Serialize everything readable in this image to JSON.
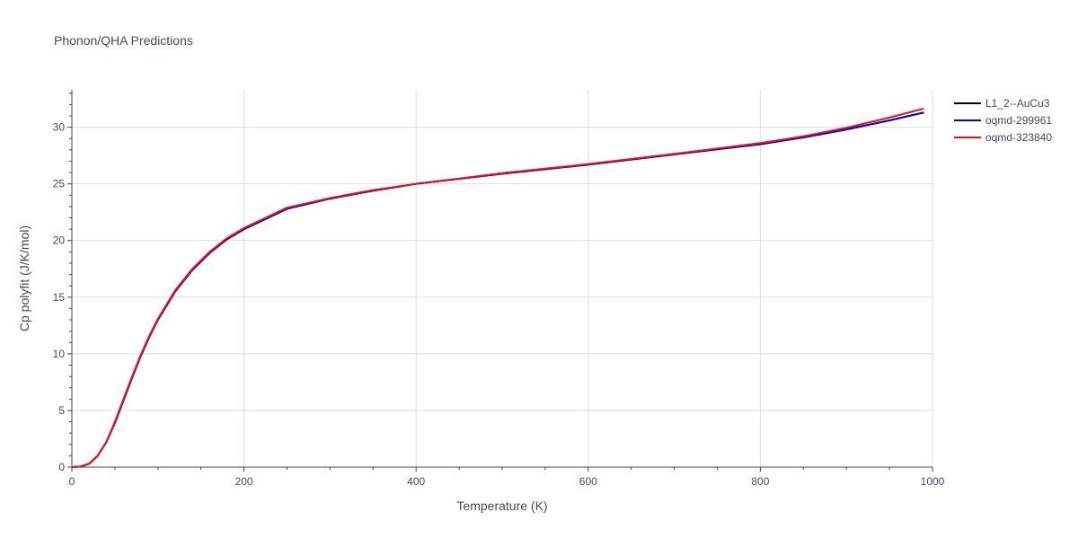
{
  "chart_data": {
    "type": "line",
    "title": "Phonon/QHA Predictions",
    "xlabel": "Temperature (K)",
    "ylabel": "Cp polyfit (J/K/mol)",
    "xlim": [
      0,
      1000
    ],
    "ylim": [
      0,
      33.3
    ],
    "xticks": [
      0,
      200,
      400,
      600,
      800,
      1000
    ],
    "yticks": [
      0,
      5,
      10,
      15,
      20,
      25,
      30
    ],
    "grid": true,
    "legend_position": "top-right",
    "series": [
      {
        "name": "L1_2--AuCu3",
        "color": "#000000",
        "x": [
          0,
          10,
          20,
          30,
          40,
          50,
          60,
          70,
          80,
          90,
          100,
          120,
          140,
          160,
          180,
          200,
          250,
          300,
          350,
          400,
          500,
          600,
          700,
          800,
          850,
          900,
          950,
          990
        ],
        "y": [
          0,
          0.05,
          0.3,
          1.0,
          2.2,
          3.9,
          5.9,
          7.9,
          9.8,
          11.5,
          13.0,
          15.5,
          17.4,
          18.9,
          20.1,
          21.0,
          22.8,
          23.7,
          24.4,
          25.0,
          25.9,
          26.7,
          27.6,
          28.5,
          29.1,
          29.8,
          30.6,
          31.3
        ]
      },
      {
        "name": "oqmd-299961",
        "color": "#0000dd",
        "x": [
          0,
          10,
          20,
          30,
          40,
          50,
          60,
          70,
          80,
          90,
          100,
          120,
          140,
          160,
          180,
          200,
          250,
          300,
          350,
          400,
          500,
          600,
          700,
          800,
          850,
          900,
          950,
          990
        ],
        "y": [
          0,
          0.05,
          0.3,
          1.0,
          2.2,
          3.9,
          5.9,
          7.9,
          9.8,
          11.5,
          13.0,
          15.5,
          17.4,
          18.9,
          20.1,
          21.0,
          22.8,
          23.7,
          24.4,
          25.0,
          25.9,
          26.7,
          27.6,
          28.5,
          29.1,
          29.8,
          30.6,
          31.3
        ]
      },
      {
        "name": "oqmd-323840",
        "color": "#ee1111",
        "x": [
          0,
          10,
          20,
          30,
          40,
          50,
          60,
          70,
          80,
          90,
          100,
          120,
          140,
          160,
          180,
          200,
          250,
          300,
          350,
          400,
          500,
          600,
          700,
          800,
          850,
          900,
          950,
          990
        ],
        "y": [
          0,
          0.05,
          0.3,
          1.0,
          2.2,
          4.0,
          6.0,
          8.0,
          9.9,
          11.6,
          13.1,
          15.6,
          17.5,
          19.0,
          20.2,
          21.1,
          22.9,
          23.75,
          24.45,
          25.0,
          25.95,
          26.75,
          27.65,
          28.6,
          29.2,
          29.95,
          30.85,
          31.65
        ]
      }
    ]
  }
}
